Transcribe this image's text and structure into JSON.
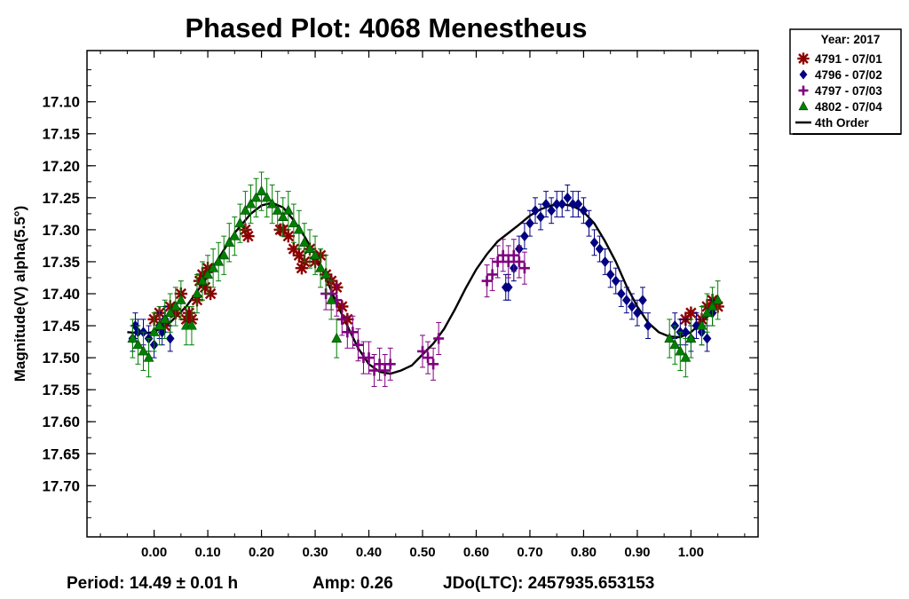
{
  "chart_data": {
    "type": "scatter",
    "title": "Phased Plot: 4068 Menestheus",
    "xlabel": "",
    "ylabel": "Magnitude(V) alpha(5.5°)",
    "xlim": [
      -0.125,
      1.125
    ],
    "ylim": [
      17.78,
      17.02
    ],
    "y_inverted": true,
    "grid": false,
    "legend_position": "top-right, outside plot",
    "x_ticks": [
      "0.00",
      "0.10",
      "0.20",
      "0.30",
      "0.40",
      "0.50",
      "0.60",
      "0.70",
      "0.80",
      "0.90",
      "1.00"
    ],
    "y_ticks": [
      "17.10",
      "17.15",
      "17.20",
      "17.25",
      "17.30",
      "17.35",
      "17.40",
      "17.45",
      "17.50",
      "17.55",
      "17.60",
      "17.65",
      "17.70"
    ],
    "legend": {
      "title": "Year: 2017",
      "entries": [
        {
          "label": "4791 - 07/01",
          "marker": "asterisk",
          "color": "#8b0000"
        },
        {
          "label": "4796 - 07/02",
          "marker": "diamond",
          "color": "#000080"
        },
        {
          "label": "4797 - 07/03",
          "marker": "plus",
          "color": "#800080"
        },
        {
          "label": "4802 - 07/04",
          "marker": "triangle",
          "color": "#008000"
        },
        {
          "label": "4th Order",
          "marker": "line",
          "color": "#000000"
        }
      ]
    },
    "footer": {
      "period": "Period: 14.49 ± 0.01 h",
      "amp": "Amp: 0.26",
      "jdo": "JDo(LTC): 2457935.653153"
    },
    "fit_curve": {
      "name": "4th Order",
      "x": [
        -0.05,
        -0.02,
        0.0,
        0.03,
        0.06,
        0.09,
        0.12,
        0.15,
        0.18,
        0.2,
        0.22,
        0.24,
        0.26,
        0.28,
        0.3,
        0.32,
        0.34,
        0.36,
        0.38,
        0.4,
        0.42,
        0.44,
        0.46,
        0.48,
        0.5,
        0.52,
        0.54,
        0.56,
        0.58,
        0.6,
        0.62,
        0.64,
        0.66,
        0.68,
        0.7,
        0.72,
        0.74,
        0.76,
        0.78,
        0.8,
        0.82,
        0.84,
        0.86,
        0.88,
        0.9,
        0.92,
        0.94,
        0.96,
        0.98,
        1.0,
        1.02,
        1.05
      ],
      "y": [
        17.46,
        17.462,
        17.46,
        17.445,
        17.42,
        17.385,
        17.345,
        17.305,
        17.275,
        17.262,
        17.258,
        17.265,
        17.285,
        17.31,
        17.34,
        17.375,
        17.415,
        17.45,
        17.485,
        17.51,
        17.522,
        17.525,
        17.52,
        17.512,
        17.495,
        17.478,
        17.455,
        17.425,
        17.392,
        17.362,
        17.338,
        17.318,
        17.305,
        17.292,
        17.278,
        17.268,
        17.262,
        17.26,
        17.263,
        17.272,
        17.29,
        17.318,
        17.35,
        17.388,
        17.42,
        17.445,
        17.46,
        17.467,
        17.468,
        17.46,
        17.445,
        17.42
      ]
    },
    "series": [
      {
        "name": "4791 - 07/01",
        "marker": "asterisk",
        "color": "#8b0000",
        "x": [
          0.0,
          0.01,
          0.02,
          0.03,
          0.04,
          0.05,
          0.06,
          0.065,
          0.07,
          0.08,
          0.085,
          0.09,
          0.095,
          0.1,
          0.105,
          0.17,
          0.175,
          0.235,
          0.24,
          0.25,
          0.26,
          0.27,
          0.275,
          0.28,
          0.29,
          0.3,
          0.31,
          0.32,
          0.33,
          0.34,
          0.35,
          0.36,
          0.99,
          1.0,
          1.02,
          1.03,
          1.04,
          1.05
        ],
        "y": [
          17.44,
          17.43,
          17.45,
          17.42,
          17.43,
          17.4,
          17.44,
          17.43,
          17.44,
          17.41,
          17.38,
          17.37,
          17.39,
          17.36,
          17.4,
          17.3,
          17.31,
          17.3,
          17.3,
          17.31,
          17.33,
          17.34,
          17.36,
          17.35,
          17.33,
          17.35,
          17.34,
          17.37,
          17.38,
          17.39,
          17.42,
          17.44,
          17.44,
          17.43,
          17.44,
          17.42,
          17.41,
          17.42
        ]
      },
      {
        "name": "4796 - 07/02",
        "marker": "diamond",
        "color": "#000080",
        "x": [
          -0.04,
          -0.035,
          -0.03,
          -0.02,
          -0.01,
          0.0,
          0.01,
          0.015,
          0.02,
          0.03,
          0.655,
          0.66,
          0.67,
          0.68,
          0.69,
          0.7,
          0.71,
          0.72,
          0.73,
          0.74,
          0.75,
          0.76,
          0.77,
          0.78,
          0.79,
          0.8,
          0.81,
          0.82,
          0.83,
          0.84,
          0.85,
          0.86,
          0.87,
          0.88,
          0.89,
          0.9,
          0.91,
          0.92,
          0.97,
          0.98,
          0.99,
          1.0,
          1.01,
          1.02,
          1.03,
          1.04
        ],
        "y": [
          17.47,
          17.45,
          17.46,
          17.46,
          17.47,
          17.48,
          17.45,
          17.46,
          17.44,
          17.47,
          17.39,
          17.39,
          17.36,
          17.33,
          17.31,
          17.29,
          17.27,
          17.28,
          17.26,
          17.27,
          17.26,
          17.26,
          17.25,
          17.26,
          17.26,
          17.27,
          17.29,
          17.32,
          17.33,
          17.35,
          17.37,
          17.38,
          17.4,
          17.41,
          17.42,
          17.43,
          17.41,
          17.45,
          17.45,
          17.46,
          17.46,
          17.47,
          17.45,
          17.46,
          17.47,
          17.43
        ],
        "error": 0.02
      },
      {
        "name": "4797 - 07/03",
        "marker": "plus",
        "color": "#800080",
        "x": [
          0.32,
          0.33,
          0.34,
          0.35,
          0.36,
          0.37,
          0.38,
          0.39,
          0.4,
          0.41,
          0.42,
          0.43,
          0.44,
          0.5,
          0.51,
          0.52,
          0.53,
          0.62,
          0.63,
          0.64,
          0.65,
          0.66,
          0.67,
          0.68,
          0.69
        ],
        "y": [
          17.4,
          17.4,
          17.41,
          17.44,
          17.46,
          17.46,
          17.48,
          17.5,
          17.5,
          17.52,
          17.51,
          17.52,
          17.51,
          17.49,
          17.5,
          17.51,
          17.47,
          17.38,
          17.37,
          17.35,
          17.34,
          17.35,
          17.34,
          17.35,
          17.36
        ],
        "error": 0.025
      },
      {
        "name": "4802 - 07/04",
        "marker": "triangle",
        "color": "#008000",
        "x": [
          -0.04,
          -0.03,
          -0.02,
          -0.01,
          0.0,
          0.01,
          0.02,
          0.03,
          0.04,
          0.05,
          0.06,
          0.07,
          0.08,
          0.09,
          0.1,
          0.11,
          0.12,
          0.13,
          0.14,
          0.15,
          0.16,
          0.17,
          0.18,
          0.19,
          0.2,
          0.21,
          0.22,
          0.23,
          0.24,
          0.25,
          0.26,
          0.27,
          0.28,
          0.29,
          0.3,
          0.31,
          0.32,
          0.33,
          0.34,
          0.96,
          0.97,
          0.98,
          0.99,
          1.0,
          1.02,
          1.03,
          1.04,
          1.05
        ],
        "y": [
          17.47,
          17.48,
          17.49,
          17.5,
          17.46,
          17.45,
          17.44,
          17.43,
          17.42,
          17.41,
          17.45,
          17.45,
          17.4,
          17.38,
          17.37,
          17.36,
          17.35,
          17.34,
          17.32,
          17.31,
          17.29,
          17.27,
          17.26,
          17.25,
          17.24,
          17.25,
          17.26,
          17.27,
          17.28,
          17.27,
          17.29,
          17.3,
          17.32,
          17.33,
          17.34,
          17.36,
          17.37,
          17.41,
          17.47,
          17.47,
          17.48,
          17.49,
          17.5,
          17.47,
          17.45,
          17.43,
          17.42,
          17.41
        ],
        "error": 0.03
      }
    ]
  }
}
